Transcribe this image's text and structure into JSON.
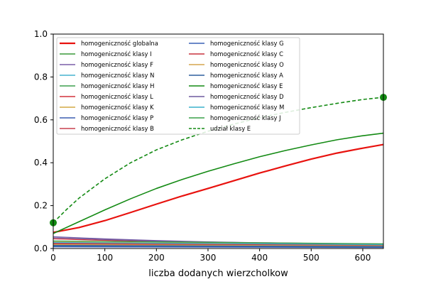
{
  "chart_data": {
    "type": "line",
    "xlabel": "liczba dodanych wierzcholkow",
    "ylabel": "",
    "xlim": [
      0,
      640
    ],
    "ylim": [
      0,
      1.0
    ],
    "xticks": [
      "0",
      "100",
      "200",
      "300",
      "400",
      "500",
      "600"
    ],
    "yticks": [
      "0.0",
      "0.2",
      "0.4",
      "0.6",
      "0.8",
      "1.0"
    ],
    "grid": false,
    "legend_position": "top-left",
    "series": [
      {
        "name": "homogeniczność  globalna",
        "color": "#e8120e",
        "style": "solid",
        "width": 2.2,
        "x": [
          0,
          50,
          100,
          150,
          200,
          250,
          300,
          350,
          400,
          450,
          500,
          550,
          600,
          640
        ],
        "y": [
          0.075,
          0.098,
          0.13,
          0.168,
          0.207,
          0.245,
          0.28,
          0.316,
          0.352,
          0.385,
          0.417,
          0.445,
          0.468,
          0.485
        ]
      },
      {
        "name": "homogeniczność  klasy I",
        "color": "#3a9a3a",
        "style": "solid",
        "width": 1.3,
        "x": [
          0,
          640
        ],
        "y": [
          0.012,
          0.008
        ]
      },
      {
        "name": "homogeniczność  klasy F",
        "color": "#7a5fa8",
        "style": "solid",
        "width": 1.3,
        "x": [
          0,
          100,
          200,
          300,
          400,
          500,
          640
        ],
        "y": [
          0.055,
          0.045,
          0.037,
          0.031,
          0.027,
          0.024,
          0.021
        ]
      },
      {
        "name": "homogeniczność  klasy N",
        "color": "#46b3cf",
        "style": "solid",
        "width": 1.3,
        "x": [
          0,
          640
        ],
        "y": [
          0.02,
          0.013
        ]
      },
      {
        "name": "homogeniczność  klasy H",
        "color": "#3d9f4e",
        "style": "solid",
        "width": 1.3,
        "x": [
          0,
          640
        ],
        "y": [
          0.016,
          0.011
        ]
      },
      {
        "name": "homogeniczność  klasy L",
        "color": "#d2323c",
        "style": "solid",
        "width": 1.3,
        "x": [
          0,
          100,
          200,
          300,
          400,
          500,
          640
        ],
        "y": [
          0.045,
          0.038,
          0.032,
          0.028,
          0.024,
          0.022,
          0.019
        ]
      },
      {
        "name": "homogeniczność  klasy K",
        "color": "#d4a843",
        "style": "solid",
        "width": 1.3,
        "x": [
          0,
          640
        ],
        "y": [
          0.03,
          0.02
        ]
      },
      {
        "name": "homogeniczność  klasy P",
        "color": "#3b5fb0",
        "style": "solid",
        "width": 1.3,
        "x": [
          0,
          640
        ],
        "y": [
          0.01,
          0.007
        ]
      },
      {
        "name": "homogeniczność  klasy B",
        "color": "#c9414f",
        "style": "solid",
        "width": 1.3,
        "x": [
          0,
          640
        ],
        "y": [
          0.025,
          0.016
        ]
      },
      {
        "name": "homogeniczność  klasy G",
        "color": "#3a62b5",
        "style": "solid",
        "width": 1.3,
        "x": [
          0,
          640
        ],
        "y": [
          0.008,
          0.005
        ]
      },
      {
        "name": "homogeniczność  klasy C",
        "color": "#c8323e",
        "style": "solid",
        "width": 1.3,
        "x": [
          0,
          640
        ],
        "y": [
          0.022,
          0.015
        ]
      },
      {
        "name": "homogeniczność  klasy O",
        "color": "#d6a54e",
        "style": "solid",
        "width": 1.3,
        "x": [
          0,
          640
        ],
        "y": [
          0.018,
          0.012
        ]
      },
      {
        "name": "homogeniczność  klasy A",
        "color": "#2f5f9e",
        "style": "solid",
        "width": 1.3,
        "x": [
          0,
          640
        ],
        "y": [
          0.014,
          0.009
        ]
      },
      {
        "name": "homogeniczność  klasy E",
        "color": "#138a13",
        "style": "solid",
        "width": 1.6,
        "x": [
          0,
          50,
          100,
          150,
          200,
          250,
          300,
          350,
          400,
          450,
          500,
          550,
          600,
          640
        ],
        "y": [
          0.07,
          0.125,
          0.18,
          0.232,
          0.28,
          0.322,
          0.36,
          0.395,
          0.428,
          0.457,
          0.483,
          0.507,
          0.526,
          0.538
        ]
      },
      {
        "name": "homogeniczność  klasy D",
        "color": "#6f5a9f",
        "style": "solid",
        "width": 1.3,
        "x": [
          0,
          100,
          200,
          300,
          400,
          500,
          640
        ],
        "y": [
          0.05,
          0.042,
          0.035,
          0.03,
          0.026,
          0.023,
          0.02
        ]
      },
      {
        "name": "homogeniczność  klasy M",
        "color": "#3ab2cc",
        "style": "solid",
        "width": 1.3,
        "x": [
          0,
          640
        ],
        "y": [
          0.028,
          0.018
        ]
      },
      {
        "name": "homogeniczność  klasy J",
        "color": "#3aa048",
        "style": "solid",
        "width": 1.3,
        "x": [
          0,
          640
        ],
        "y": [
          0.035,
          0.022
        ]
      },
      {
        "name": "udział klasy E",
        "color": "#138a13",
        "style": "dashed",
        "width": 1.6,
        "x": [
          0,
          25,
          50,
          100,
          150,
          200,
          250,
          300,
          350,
          400,
          450,
          500,
          550,
          600,
          640
        ],
        "y": [
          0.12,
          0.18,
          0.235,
          0.325,
          0.4,
          0.46,
          0.507,
          0.547,
          0.58,
          0.61,
          0.635,
          0.657,
          0.677,
          0.695,
          0.705
        ],
        "marker_points": [
          [
            0,
            0.12
          ],
          [
            640,
            0.705
          ]
        ]
      }
    ]
  }
}
